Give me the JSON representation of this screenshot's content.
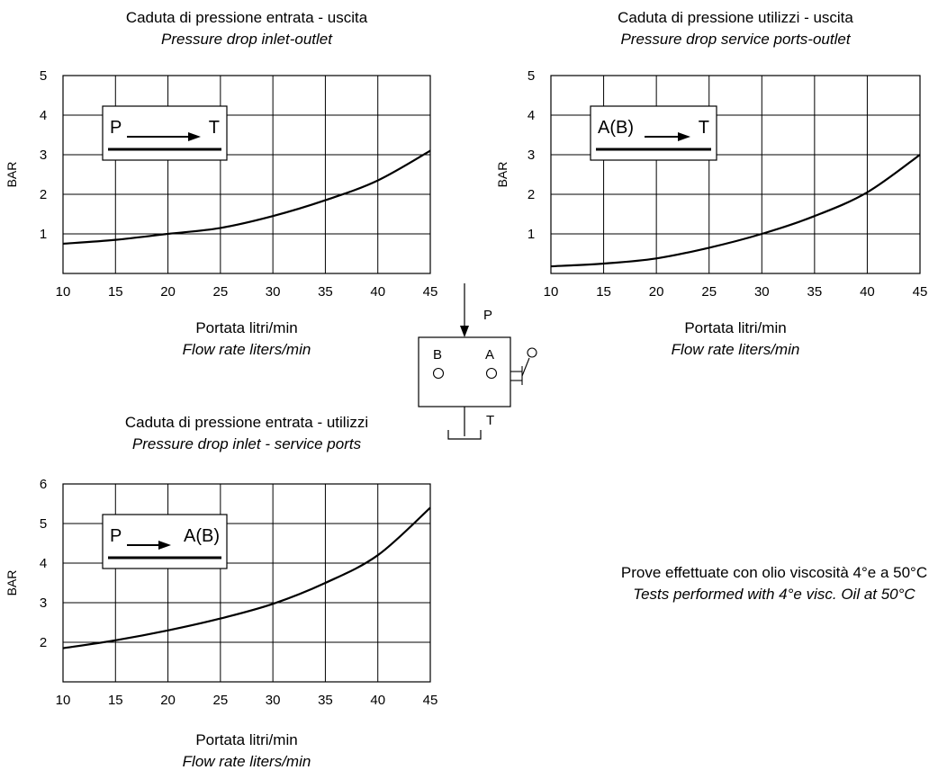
{
  "chart_data": [
    {
      "type": "line",
      "title": "Caduta di pressione entrata - uscita",
      "subtitle": "Pressure drop inlet-outlet",
      "xlabel": "Portata litri/min",
      "xlabel2": "Flow rate liters/min",
      "ylabel": "BAR",
      "xlim": [
        10,
        45
      ],
      "ylim": [
        0,
        5
      ],
      "xticks": [
        "10",
        "15",
        "20",
        "25",
        "30",
        "35",
        "40",
        "45"
      ],
      "yticks": [
        "1",
        "2",
        "3",
        "4",
        "5"
      ],
      "grid": true,
      "inset": {
        "from": "P",
        "to": "T"
      },
      "series": [
        {
          "x": [
            10,
            15,
            20,
            25,
            30,
            35,
            40,
            45
          ],
          "y": [
            0.75,
            0.85,
            1.0,
            1.15,
            1.45,
            1.85,
            2.35,
            3.1
          ]
        }
      ]
    },
    {
      "type": "line",
      "title": "Caduta di pressione utilizzi - uscita",
      "subtitle": "Pressure drop service ports-outlet",
      "xlabel": "Portata litri/min",
      "xlabel2": "Flow rate liters/min",
      "ylabel": "BAR",
      "xlim": [
        10,
        45
      ],
      "ylim": [
        0,
        5
      ],
      "xticks": [
        "10",
        "15",
        "20",
        "25",
        "30",
        "35",
        "40",
        "45"
      ],
      "yticks": [
        "1",
        "2",
        "3",
        "4",
        "5"
      ],
      "grid": true,
      "inset": {
        "from": "A(B)",
        "to": "T"
      },
      "series": [
        {
          "x": [
            10,
            15,
            20,
            25,
            30,
            35,
            40,
            45
          ],
          "y": [
            0.18,
            0.25,
            0.38,
            0.65,
            1.0,
            1.45,
            2.05,
            3.0
          ]
        }
      ]
    },
    {
      "type": "line",
      "title": "Caduta di pressione entrata - utilizzi",
      "subtitle": "Pressure drop inlet - service ports",
      "xlabel": "Portata litri/min",
      "xlabel2": "Flow rate liters/min",
      "ylabel": "BAR",
      "xlim": [
        10,
        45
      ],
      "ylim": [
        1,
        6
      ],
      "xticks": [
        "10",
        "15",
        "20",
        "25",
        "30",
        "35",
        "40",
        "45"
      ],
      "yticks": [
        "2",
        "3",
        "4",
        "5",
        "6"
      ],
      "grid": true,
      "inset": {
        "from": "P",
        "to": "A(B)"
      },
      "series": [
        {
          "x": [
            10,
            15,
            20,
            25,
            30,
            35,
            40,
            45
          ],
          "y": [
            1.85,
            2.05,
            2.3,
            2.6,
            2.97,
            3.5,
            4.2,
            5.4
          ]
        }
      ]
    }
  ],
  "valve": {
    "p": "P",
    "b": "B",
    "a": "A",
    "t": "T"
  },
  "note": {
    "line1": "Prove effettuate con olio viscosità 4°e a 50°C",
    "line2": "Tests performed with 4°e visc. Oil at 50°C"
  }
}
